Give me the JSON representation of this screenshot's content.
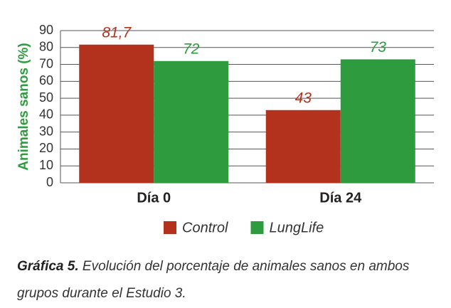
{
  "chart_data": {
    "type": "bar",
    "y_label": "Animales sanos (%)",
    "categories": [
      "Día 0",
      "Día 24"
    ],
    "series": [
      {
        "name": "Control",
        "color": "#b3321e",
        "values": [
          81.7,
          43
        ],
        "value_labels": [
          "81,7",
          "43"
        ]
      },
      {
        "name": "LungLife",
        "color": "#2e9c3e",
        "values": [
          72,
          73
        ]
      }
    ],
    "ylim": [
      0,
      90
    ],
    "yticks": [
      0,
      10,
      20,
      30,
      40,
      50,
      60,
      70,
      80,
      90
    ],
    "grid": true,
    "caption_label": "Gráfica 5.",
    "caption": "Evolución del porcentaje de animales sanos en ambos grupos durante el Estudio 3."
  }
}
